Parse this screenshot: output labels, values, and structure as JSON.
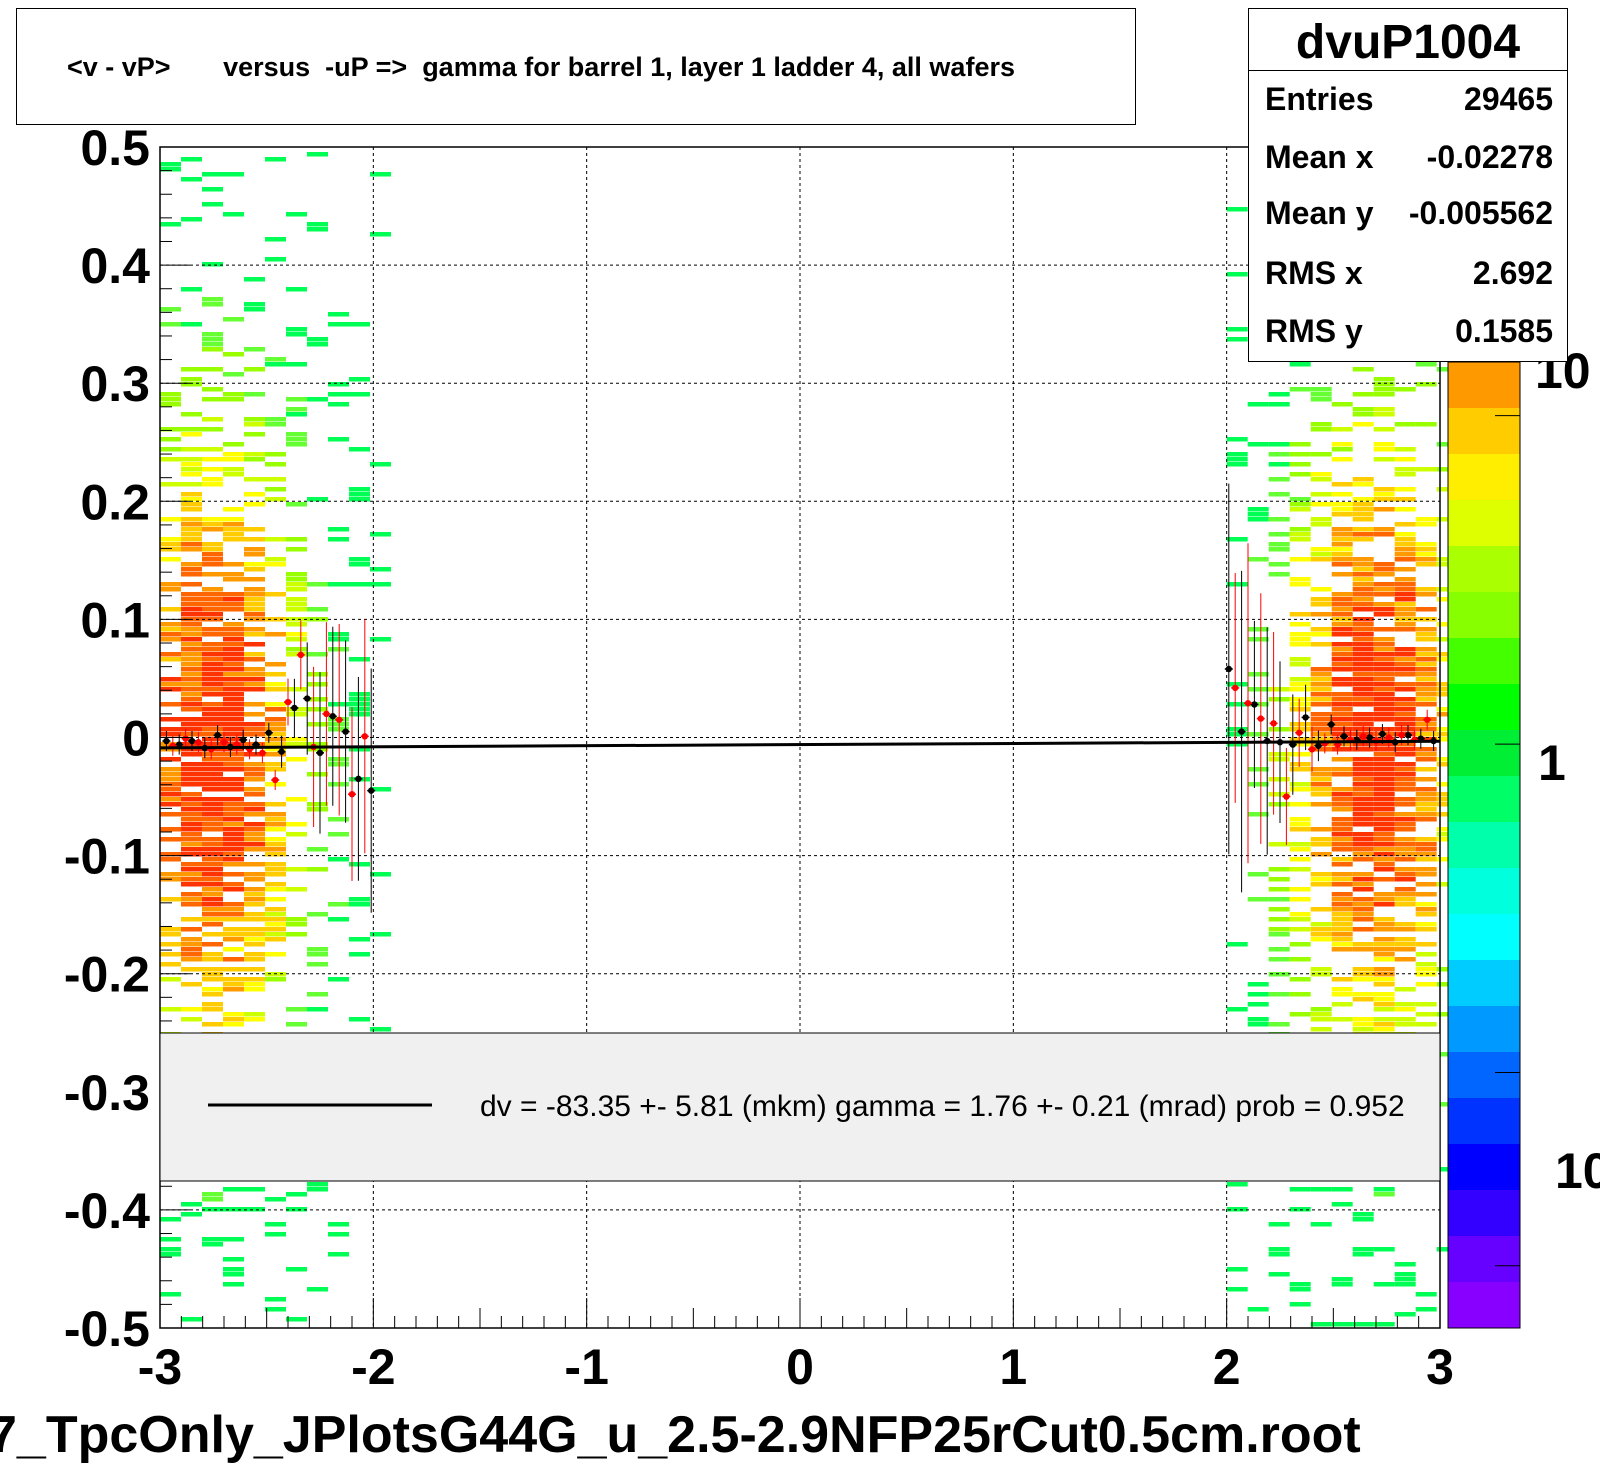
{
  "chart_data": {
    "type": "heatmap",
    "title": "<v - vP>       versus  -uP =>  gamma for barrel 1, layer 1 ladder 4, all wafers",
    "xlabel": "",
    "ylabel": "",
    "xlim": [
      -3,
      3
    ],
    "ylim": [
      -0.5,
      0.5
    ],
    "x_ticks": [
      "-3",
      "-2",
      "-1",
      "0",
      "1",
      "2",
      "3"
    ],
    "y_ticks": [
      "0.5",
      "0.4",
      "0.3",
      "0.2",
      "0.1",
      "0",
      "-0.1",
      "-0.2",
      "-0.3",
      "-0.4",
      "-0.5"
    ],
    "grid": true,
    "z_scale": "log",
    "colorbar_labels": [
      "10",
      "1",
      "10"
    ],
    "colors": {
      "low": "#00ff00",
      "mid": "#ffff00",
      "high": "#ff3300",
      "profile_black": "#000000",
      "profile_red": "#ff0000"
    },
    "density_clusters": [
      {
        "x_range": [
          -3.0,
          -2.0
        ],
        "center_x": -2.75,
        "center_y": -0.01
      },
      {
        "x_range": [
          2.0,
          3.0
        ],
        "center_x": 2.7,
        "center_y": 0.0
      }
    ],
    "series": [
      {
        "name": "black profile",
        "points": [
          {
            "x": -2.97,
            "y": -0.003
          },
          {
            "x": -2.91,
            "y": -0.006
          },
          {
            "x": -2.85,
            "y": -0.003
          },
          {
            "x": -2.79,
            "y": -0.009
          },
          {
            "x": -2.73,
            "y": 0.002
          },
          {
            "x": -2.67,
            "y": -0.008
          },
          {
            "x": -2.61,
            "y": -0.002
          },
          {
            "x": -2.55,
            "y": -0.006
          },
          {
            "x": -2.49,
            "y": 0.004
          },
          {
            "x": -2.43,
            "y": -0.012
          },
          {
            "x": -2.37,
            "y": 0.025
          },
          {
            "x": -2.31,
            "y": 0.033
          },
          {
            "x": -2.25,
            "y": -0.013
          },
          {
            "x": -2.19,
            "y": 0.018
          },
          {
            "x": -2.13,
            "y": 0.005
          },
          {
            "x": -2.07,
            "y": -0.035
          },
          {
            "x": -2.01,
            "y": -0.045
          },
          {
            "x": 2.01,
            "y": 0.058
          },
          {
            "x": 2.07,
            "y": 0.005
          },
          {
            "x": 2.13,
            "y": 0.028
          },
          {
            "x": 2.19,
            "y": -0.003
          },
          {
            "x": 2.25,
            "y": -0.004
          },
          {
            "x": 2.31,
            "y": -0.006
          },
          {
            "x": 2.37,
            "y": 0.017
          },
          {
            "x": 2.43,
            "y": -0.007
          },
          {
            "x": 2.49,
            "y": 0.011
          },
          {
            "x": 2.55,
            "y": 0.001
          },
          {
            "x": 2.61,
            "y": -0.002
          },
          {
            "x": 2.67,
            "y": 0.0
          },
          {
            "x": 2.73,
            "y": 0.003
          },
          {
            "x": 2.79,
            "y": -0.004
          },
          {
            "x": 2.85,
            "y": 0.002
          },
          {
            "x": 2.91,
            "y": -0.001
          },
          {
            "x": 2.97,
            "y": -0.003
          }
        ]
      },
      {
        "name": "red profile",
        "points": [
          {
            "x": -2.94,
            "y": -0.007
          },
          {
            "x": -2.88,
            "y": -0.001
          },
          {
            "x": -2.82,
            "y": -0.004
          },
          {
            "x": -2.76,
            "y": -0.01
          },
          {
            "x": -2.7,
            "y": -0.004
          },
          {
            "x": -2.64,
            "y": -0.006
          },
          {
            "x": -2.58,
            "y": -0.01
          },
          {
            "x": -2.52,
            "y": -0.013
          },
          {
            "x": -2.46,
            "y": -0.036
          },
          {
            "x": -2.4,
            "y": 0.03
          },
          {
            "x": -2.34,
            "y": 0.07
          },
          {
            "x": -2.28,
            "y": -0.008
          },
          {
            "x": -2.22,
            "y": 0.02
          },
          {
            "x": -2.16,
            "y": 0.015
          },
          {
            "x": -2.1,
            "y": -0.048
          },
          {
            "x": -2.04,
            "y": 0.001
          },
          {
            "x": 2.04,
            "y": 0.042
          },
          {
            "x": 2.1,
            "y": 0.029
          },
          {
            "x": 2.16,
            "y": 0.016
          },
          {
            "x": 2.22,
            "y": 0.012
          },
          {
            "x": 2.28,
            "y": -0.05
          },
          {
            "x": 2.34,
            "y": 0.004
          },
          {
            "x": 2.4,
            "y": -0.01
          },
          {
            "x": 2.46,
            "y": -0.005
          },
          {
            "x": 2.52,
            "y": -0.006
          },
          {
            "x": 2.58,
            "y": -0.002
          },
          {
            "x": 2.64,
            "y": 0.001
          },
          {
            "x": 2.7,
            "y": -0.003
          },
          {
            "x": 2.76,
            "y": 0.0
          },
          {
            "x": 2.82,
            "y": 0.002
          },
          {
            "x": 2.88,
            "y": -0.002
          },
          {
            "x": 2.94,
            "y": 0.015
          }
        ]
      }
    ],
    "fit_line": {
      "x": [
        -3,
        3
      ],
      "y": [
        -0.0088,
        -0.0032
      ]
    },
    "legend_text": "dv =  -83.35 +-  5.81 (mkm) gamma =    1.76 +-  0.21 (mrad) prob = 0.952",
    "legend_position": "lower-center"
  },
  "stats": {
    "name": "dvuP1004",
    "rows": [
      {
        "label": "Entries",
        "value": "29465"
      },
      {
        "label": "Mean x",
        "value": "-0.02278"
      },
      {
        "label": "Mean y",
        "value": "-0.005562"
      },
      {
        "label": "RMS x",
        "value": "2.692"
      },
      {
        "label": "RMS y",
        "value": "0.1585"
      }
    ]
  },
  "footer": {
    "filename": "7_TpcOnly_JPlotsG44G_u_2.5-2.9NFP25rCut0.5cm.root"
  }
}
